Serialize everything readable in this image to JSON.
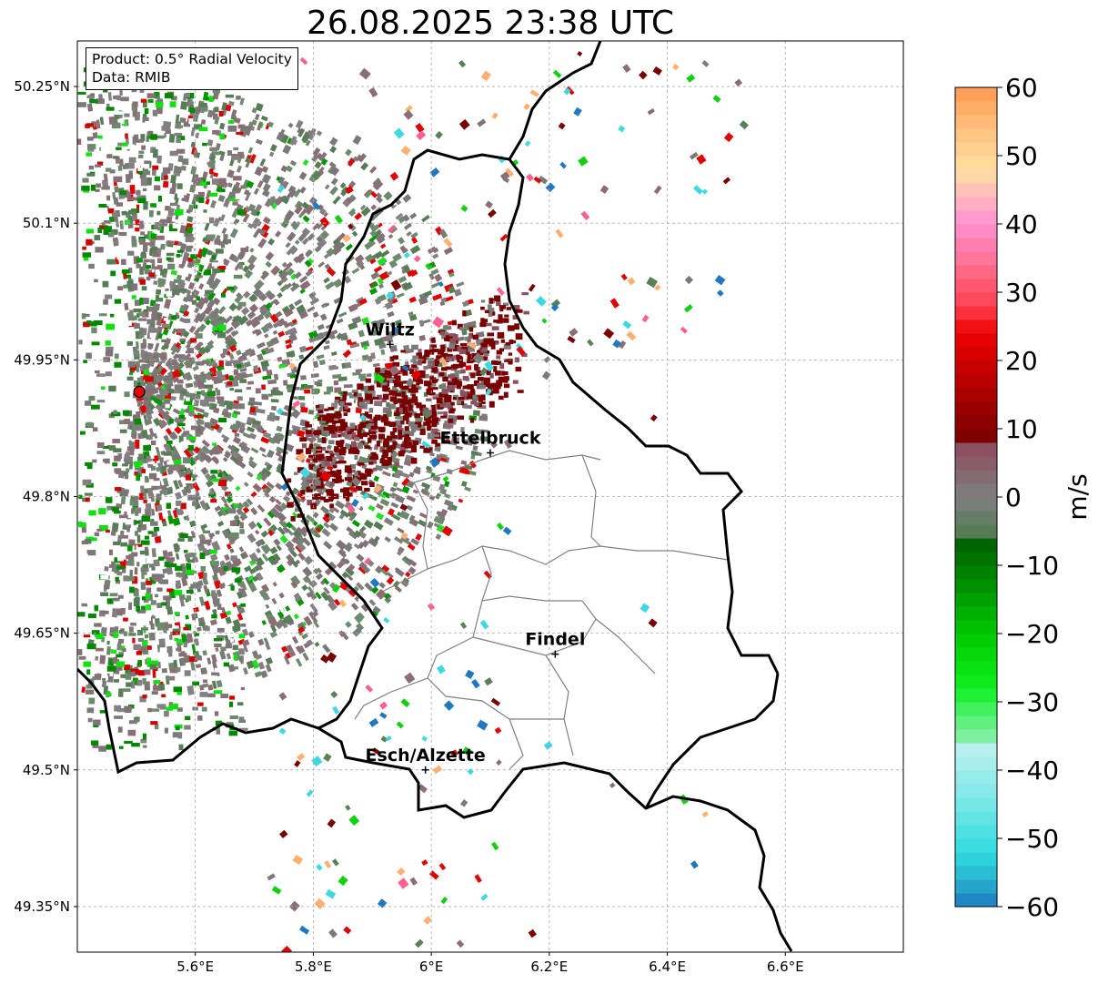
{
  "title": "26.08.2025 23:38 UTC",
  "info": {
    "product": "Product: 0.5° Radial Velocity",
    "data": "Data: RMIB"
  },
  "map": {
    "lon_range": [
      5.4,
      6.8
    ],
    "lat_range": [
      49.3,
      50.3
    ],
    "lat_ticks": [
      {
        "value": 50.25,
        "label": "50.25°N"
      },
      {
        "value": 50.1,
        "label": "50.1°N"
      },
      {
        "value": 49.95,
        "label": "49.95°N"
      },
      {
        "value": 49.8,
        "label": "49.8°N"
      },
      {
        "value": 49.65,
        "label": "49.65°N"
      },
      {
        "value": 49.5,
        "label": "49.5°N"
      },
      {
        "value": 49.35,
        "label": "49.35°N"
      }
    ],
    "lon_ticks": [
      {
        "value": 5.6,
        "label": "5.6°E"
      },
      {
        "value": 5.8,
        "label": "5.8°E"
      },
      {
        "value": 6.0,
        "label": "6°E"
      },
      {
        "value": 6.2,
        "label": "6.2°E"
      },
      {
        "value": 6.4,
        "label": "6.4°E"
      },
      {
        "value": 6.6,
        "label": "6.6°E"
      }
    ],
    "grid": true,
    "radar_site": {
      "lon": 5.505,
      "lat": 49.915,
      "color": "#e8000b"
    },
    "towns": [
      {
        "name": "Wiltz",
        "lon": 5.93,
        "lat": 49.967
      },
      {
        "name": "Ettelbruck",
        "lon": 6.1,
        "lat": 49.848
      },
      {
        "name": "Findel",
        "lon": 6.21,
        "lat": 49.627
      },
      {
        "name": "Esch/Alzette",
        "lon": 5.99,
        "lat": 49.5
      }
    ]
  },
  "colorbar": {
    "unit": "m/s",
    "min": -60,
    "max": 60,
    "ticks": [
      60,
      50,
      40,
      30,
      20,
      10,
      0,
      -10,
      -20,
      -30,
      -40,
      -50,
      -60
    ],
    "tick_labels": [
      "60",
      "50",
      "40",
      "30",
      "20",
      "10",
      "0",
      "−10",
      "−20",
      "−30",
      "−40",
      "−50",
      "−60"
    ],
    "stops": [
      {
        "v": -60,
        "color": "#1f78c0"
      },
      {
        "v": -56,
        "color": "#28b4d0"
      },
      {
        "v": -52,
        "color": "#30dce0"
      },
      {
        "v": -44,
        "color": "#80e8e8"
      },
      {
        "v": -37,
        "color": "#b8f0f0"
      },
      {
        "v": -36,
        "color": "#8ef0b0"
      },
      {
        "v": -32,
        "color": "#50f070"
      },
      {
        "v": -28,
        "color": "#10f020"
      },
      {
        "v": -20,
        "color": "#00c800"
      },
      {
        "v": -12,
        "color": "#008800"
      },
      {
        "v": -7,
        "color": "#006400"
      },
      {
        "v": -6,
        "color": "#4e7a4e"
      },
      {
        "v": 0,
        "color": "#7f7f7f"
      },
      {
        "v": 7,
        "color": "#8a5060"
      },
      {
        "v": 8,
        "color": "#780000"
      },
      {
        "v": 16,
        "color": "#b00000"
      },
      {
        "v": 24,
        "color": "#ee0000"
      },
      {
        "v": 28,
        "color": "#ff4050"
      },
      {
        "v": 34,
        "color": "#ff7090"
      },
      {
        "v": 40,
        "color": "#ff90d0"
      },
      {
        "v": 44,
        "color": "#ffb8c0"
      },
      {
        "v": 48,
        "color": "#ffe0a0"
      },
      {
        "v": 54,
        "color": "#ffc080"
      },
      {
        "v": 60,
        "color": "#ff9a50"
      }
    ]
  }
}
